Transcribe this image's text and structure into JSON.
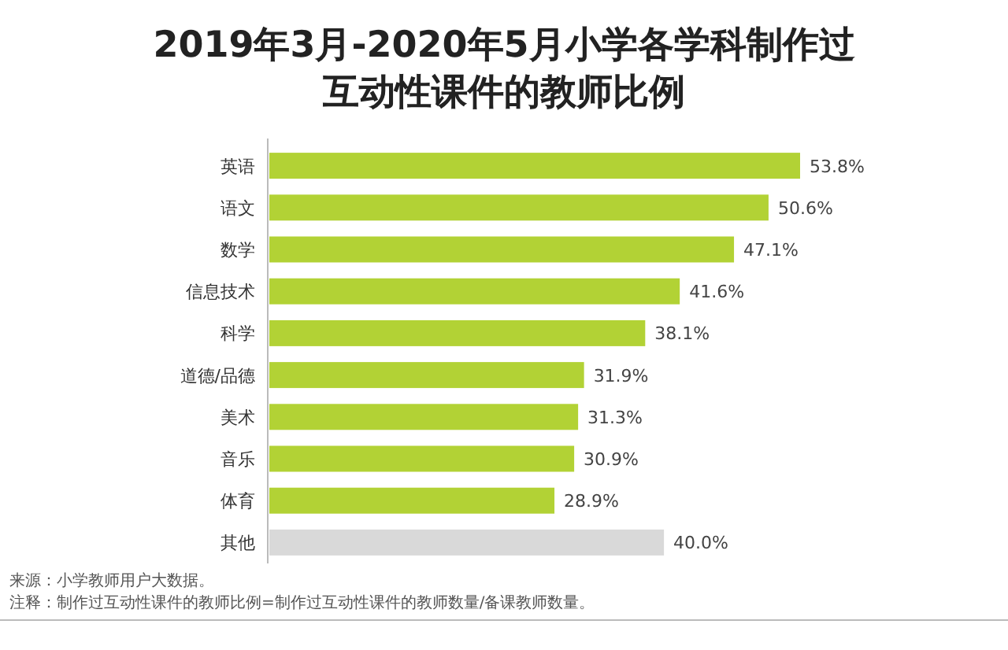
{
  "chart_data": {
    "type": "bar",
    "orientation": "horizontal",
    "title": "2019年3月-2020年5月小学各学科制作过互动性课件的教师比例",
    "categories": [
      "英语",
      "语文",
      "数学",
      "信息技术",
      "科学",
      "道德/品德",
      "美术",
      "音乐",
      "体育",
      "其他"
    ],
    "values": [
      53.8,
      50.6,
      47.1,
      41.6,
      38.1,
      31.9,
      31.3,
      30.9,
      28.9,
      40.0
    ],
    "value_labels": [
      "53.8%",
      "50.6%",
      "47.1%",
      "41.6%",
      "38.1%",
      "31.9%",
      "31.3%",
      "30.9%",
      "28.9%",
      "40.0%"
    ],
    "colors": [
      "#b2d235",
      "#b2d235",
      "#b2d235",
      "#b2d235",
      "#b2d235",
      "#b2d235",
      "#b2d235",
      "#b2d235",
      "#b2d235",
      "#d9d9d9"
    ],
    "annotations": [
      "来源：小学教师用户大数据。",
      "注释：制作过互动性课件的教师比例=制作过互动性课件的教师数量/备课教师数量。"
    ]
  }
}
